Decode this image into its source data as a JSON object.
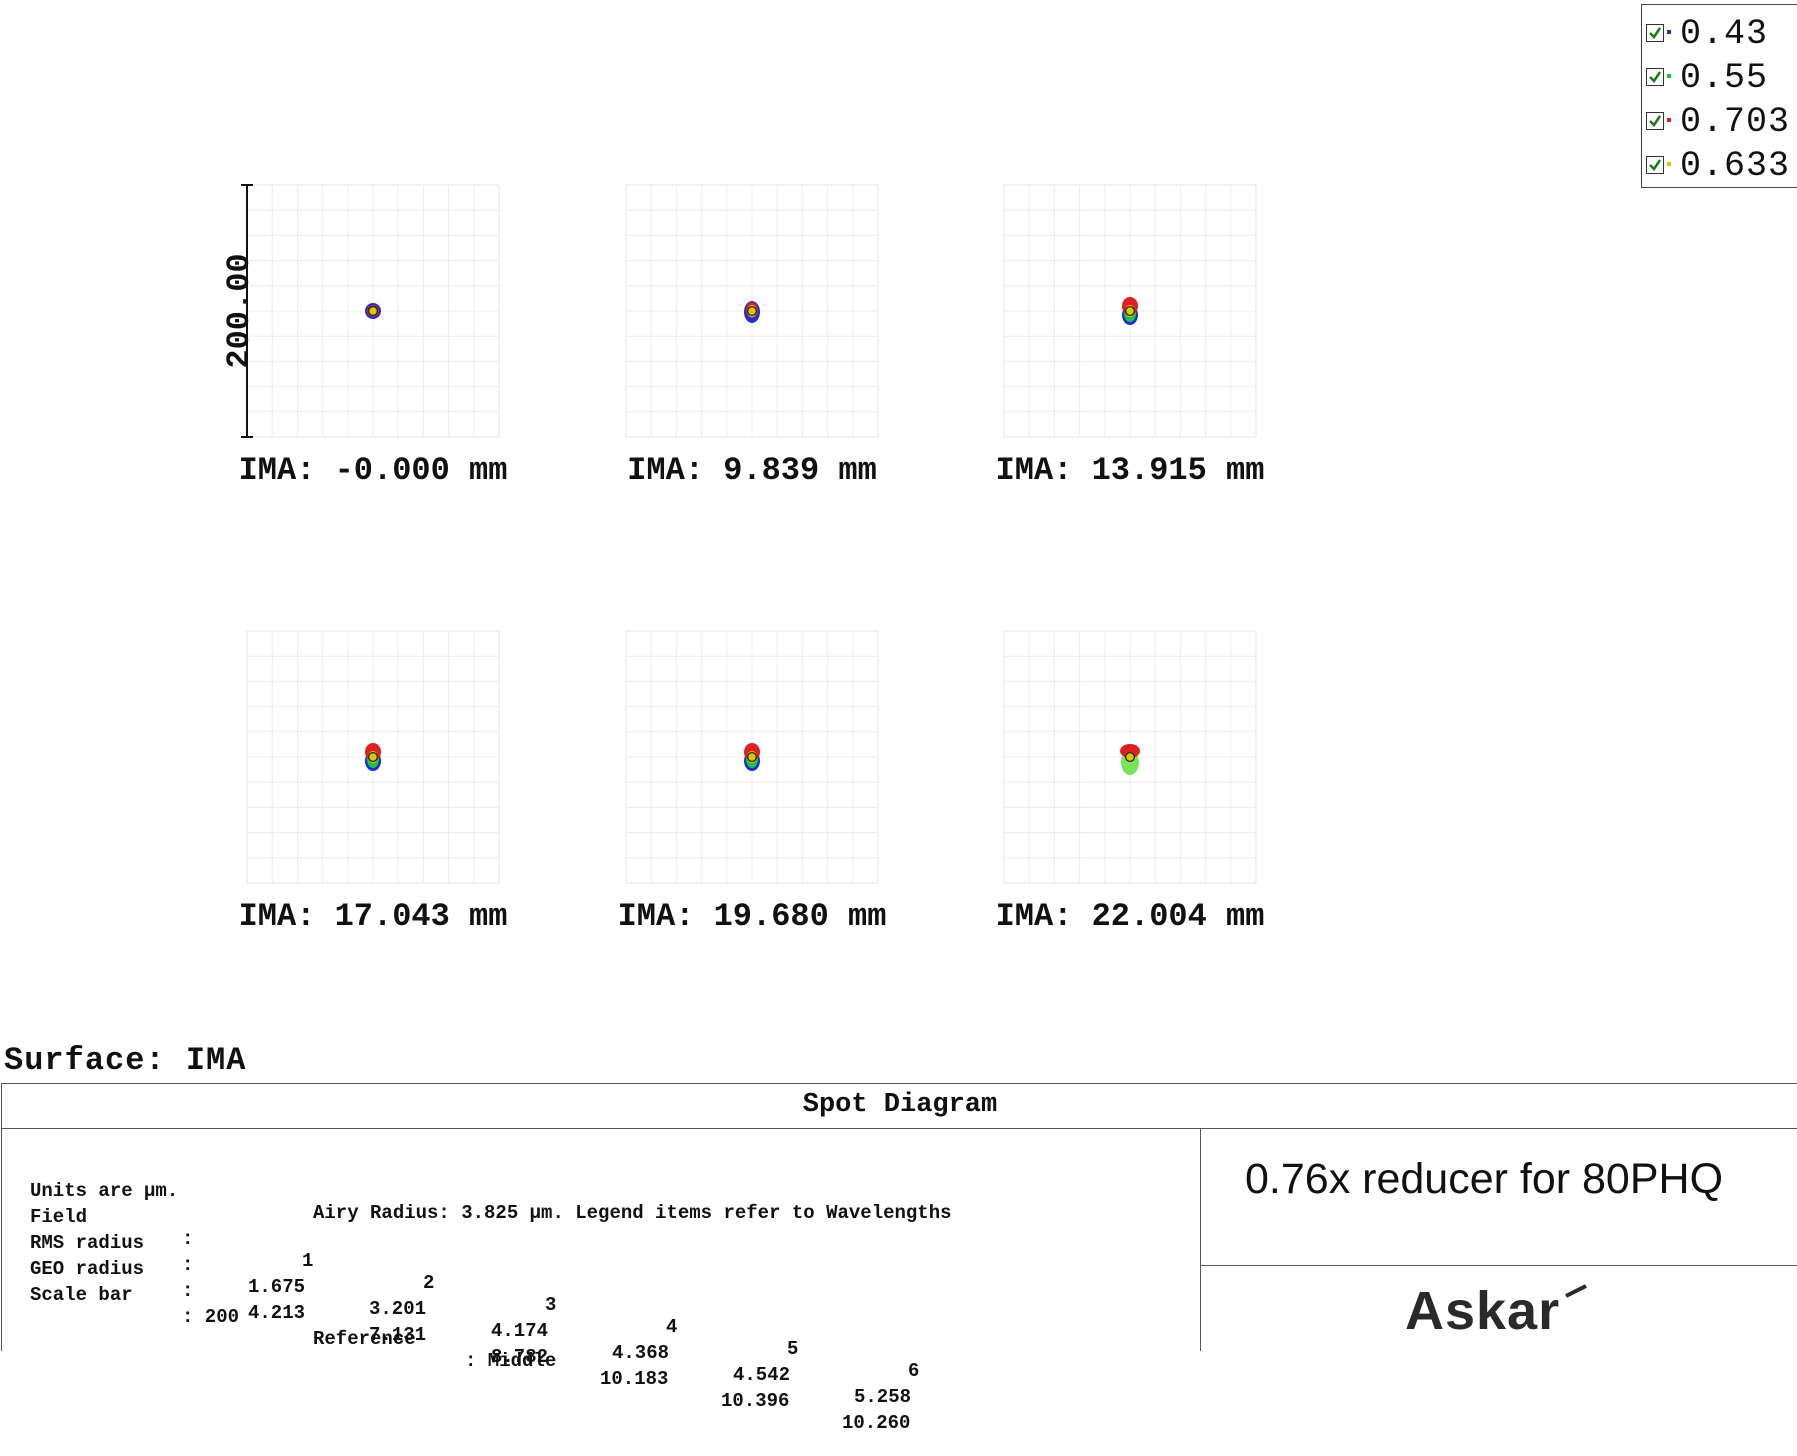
{
  "legend": {
    "items": [
      {
        "label": "0.43",
        "color": "#1e2fd6",
        "checked": true
      },
      {
        "label": "0.55",
        "color": "#22c53a",
        "checked": true
      },
      {
        "label": "0.703",
        "color": "#e02020",
        "checked": true
      },
      {
        "label": "0.633",
        "color": "#d8c800",
        "checked": true
      }
    ]
  },
  "scale_bar": {
    "label": "200.00"
  },
  "fields": [
    {
      "label": "IMA: -0.000 mm",
      "spot": "round"
    },
    {
      "label": "IMA: 9.839 mm",
      "spot": "slight"
    },
    {
      "label": "IMA: 13.915 mm",
      "spot": "elongated"
    },
    {
      "label": "IMA: 17.043 mm",
      "spot": "elongated"
    },
    {
      "label": "IMA: 19.680 mm",
      "spot": "elongated"
    },
    {
      "label": "IMA: 22.004 mm",
      "spot": "green"
    }
  ],
  "surface": {
    "label": "Surface: IMA"
  },
  "info": {
    "title": "Spot Diagram",
    "units_line": "Units are µm.",
    "airy_line": "Airy Radius: 3.825 µm. Legend items refer to Wavelengths",
    "field_label": "Field",
    "field_sep": ":",
    "field_numbers": [
      "1",
      "2",
      "3",
      "4",
      "5",
      "6"
    ],
    "rms_label": "RMS radius",
    "rms_sep": ":",
    "rms_values": [
      "1.675",
      "3.201",
      "4.174",
      "4.368",
      "4.542",
      "5.258"
    ],
    "geo_label": "GEO radius",
    "geo_sep": ":",
    "geo_values": [
      "4.213",
      "7.131",
      "8.782",
      "10.183",
      "10.396",
      "10.260"
    ],
    "scale_label": "Scale bar",
    "scale_value": ": 200",
    "reference_label": "Reference",
    "reference_value": ": Middle"
  },
  "product": {
    "title": "0.76x reducer for 80PHQ"
  },
  "brand": {
    "logo": "Askar"
  }
}
